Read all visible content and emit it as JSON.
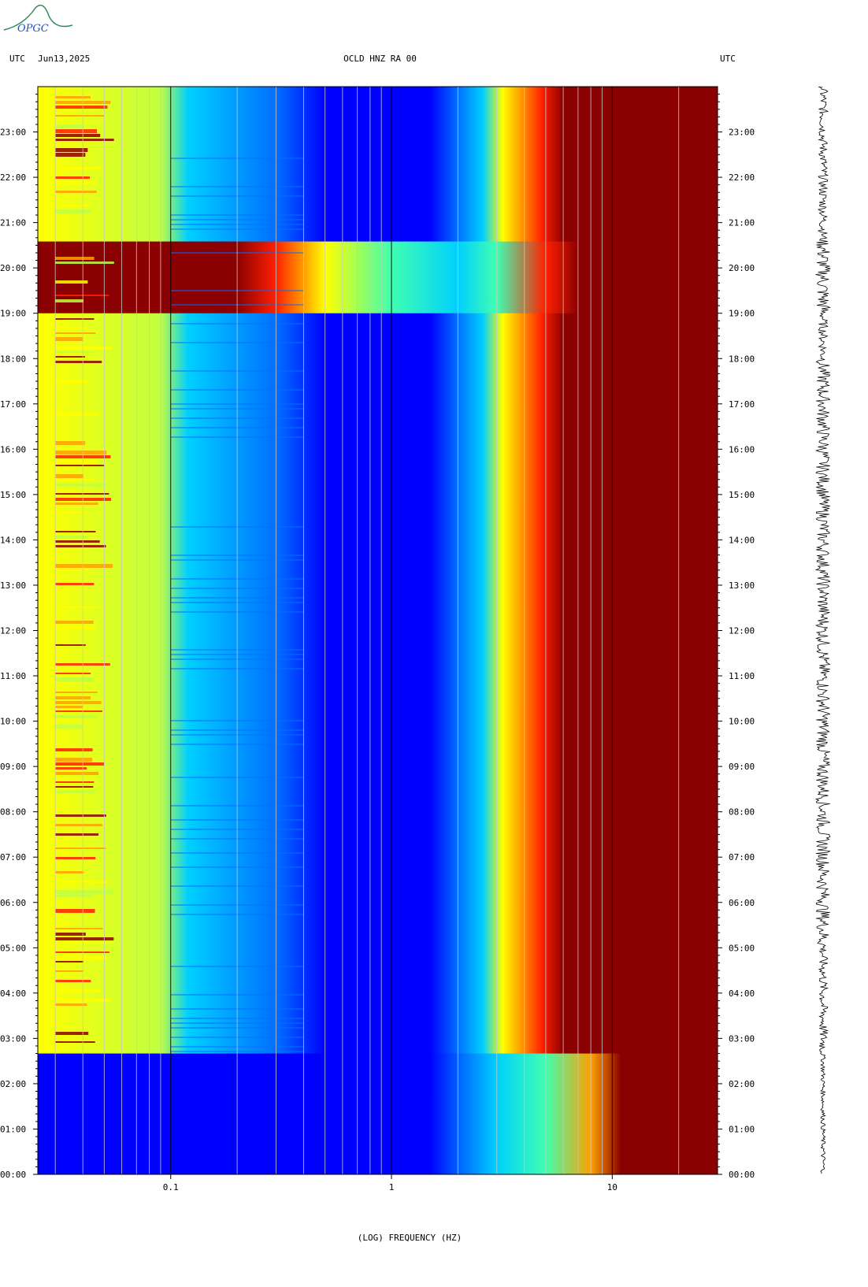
{
  "header": {
    "left_tz": "UTC",
    "date": "Jun13,2025",
    "station": "OCLD HNZ RA 00",
    "right_tz": "UTC",
    "logo_text": "OPGC"
  },
  "chart_data": {
    "type": "heatmap",
    "xlabel": "(LOG) FREQUENCY (HZ)",
    "x_scale": "log",
    "xlim": [
      0.025,
      30
    ],
    "x_ticks": [
      {
        "value": 0.1,
        "label": "0.1"
      },
      {
        "value": 1,
        "label": "1"
      },
      {
        "value": 10,
        "label": "10"
      }
    ],
    "ylim_hours": [
      0,
      24
    ],
    "y_ticks": [
      "00:00",
      "01:00",
      "02:00",
      "03:00",
      "04:00",
      "05:00",
      "06:00",
      "07:00",
      "08:00",
      "09:00",
      "10:00",
      "11:00",
      "12:00",
      "13:00",
      "14:00",
      "15:00",
      "16:00",
      "17:00",
      "18:00",
      "19:00",
      "20:00",
      "21:00",
      "22:00",
      "23:00"
    ],
    "colormap": [
      "#00008b",
      "#0000ff",
      "#0070ff",
      "#00d0ff",
      "#40ffb0",
      "#c0ff40",
      "#ffff00",
      "#ffa000",
      "#ff2000",
      "#8b0000"
    ],
    "grid": true,
    "events": [
      {
        "label": "strong broadband energy",
        "start_utc": "19:00",
        "end_utc": "20:35"
      },
      {
        "label": "microseism low-frequency energy",
        "start_utc": "02:40",
        "end_utc": "24:00"
      }
    ],
    "seismogram": "vertical trace, 00:00 to 24:00 UTC"
  }
}
